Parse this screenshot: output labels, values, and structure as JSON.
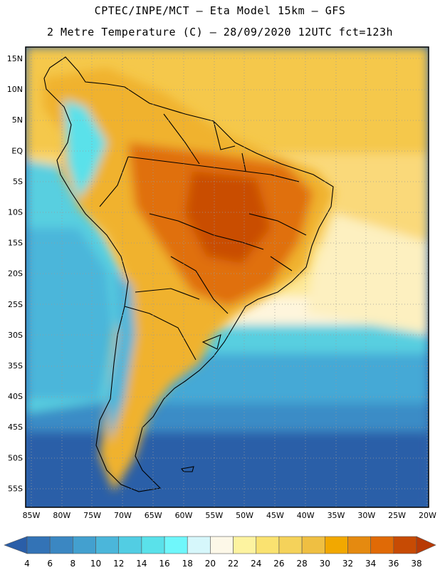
{
  "title_line1": "CPTEC/INPE/MCT –  Eta Model 15km – GFS",
  "title_line2": "2 Metre Temperature (C) – 28/09/2020 12UTC fct=123h",
  "lat_labels": [
    "15N",
    "10N",
    "5N",
    "EQ",
    "5S",
    "10S",
    "15S",
    "20S",
    "25S",
    "30S",
    "35S",
    "40S",
    "45S",
    "50S",
    "55S"
  ],
  "lon_labels": [
    "85W",
    "80W",
    "75W",
    "70W",
    "65W",
    "60W",
    "55W",
    "50W",
    "45W",
    "40W",
    "35W",
    "30W",
    "25W",
    "20W"
  ],
  "colorbar": {
    "labels": [
      "4",
      "6",
      "8",
      "10",
      "12",
      "14",
      "16",
      "18",
      "20",
      "22",
      "24",
      "26",
      "28",
      "30",
      "32",
      "34",
      "36",
      "38"
    ],
    "colors": [
      "#2a5ea8",
      "#3373b6",
      "#3b87c2",
      "#43a0cf",
      "#4bb6da",
      "#52cde3",
      "#5ae1ea",
      "#6ff7fb",
      "#d6f7fb",
      "#fdf8e8",
      "#fdf3a0",
      "#fae270",
      "#f5d25a",
      "#efbf42",
      "#f2a800",
      "#e58a10",
      "#e06a06",
      "#c74b04",
      "#b83a05"
    ]
  }
}
